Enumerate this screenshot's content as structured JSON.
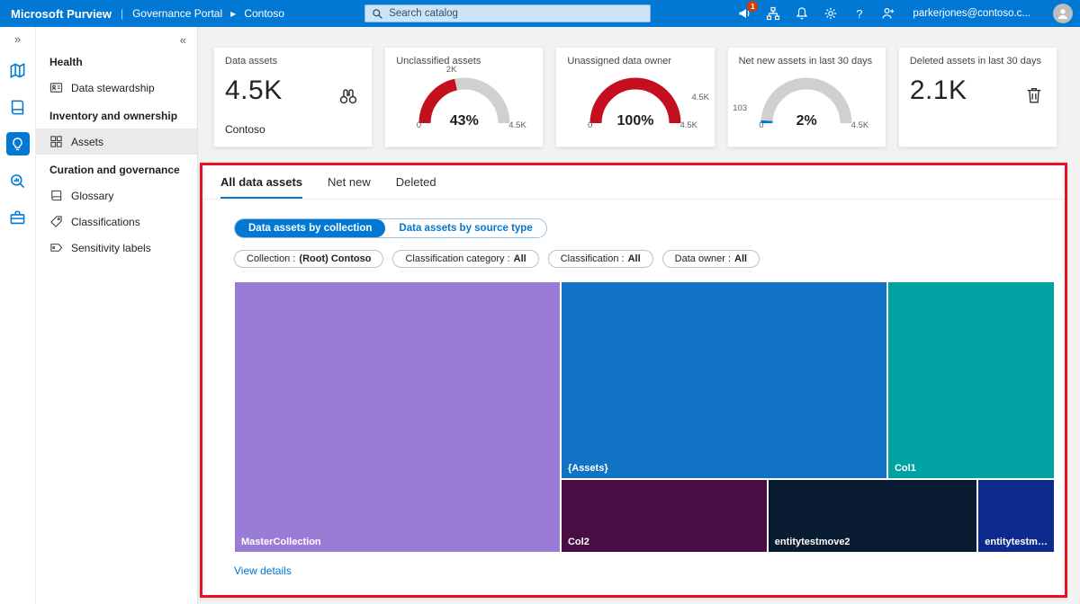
{
  "topbar": {
    "brand": "Microsoft Purview",
    "portal": "Governance Portal",
    "tenant": "Contoso",
    "search_placeholder": "Search catalog",
    "alert_badge": "1",
    "help_label": "?",
    "user_email": "parkerjones@contoso.c..."
  },
  "rail": {
    "expand_glyph": "»"
  },
  "sidebar": {
    "collapse_glyph": "«",
    "sections": [
      {
        "header": "Health",
        "items": [
          {
            "label": "Data stewardship"
          }
        ]
      },
      {
        "header": "Inventory and ownership",
        "items": [
          {
            "label": "Assets"
          }
        ]
      },
      {
        "header": "Curation and governance",
        "items": [
          {
            "label": "Glossary"
          },
          {
            "label": "Classifications"
          },
          {
            "label": "Sensitivity labels"
          }
        ]
      }
    ]
  },
  "kpi": {
    "data_assets": {
      "title": "Data assets",
      "value": "4.5K",
      "subtitle": "Contoso"
    },
    "unclassified": {
      "title": "Unclassified assets",
      "percent": 43,
      "percent_label": "43%",
      "marker": "2K",
      "min": "0",
      "max": "4.5K",
      "color": "#c50f1f"
    },
    "unassigned": {
      "title": "Unassigned data owner",
      "percent": 100,
      "percent_label": "100%",
      "marker": "4.5K",
      "min": "0",
      "max": "4.5K",
      "color": "#c50f1f"
    },
    "net_new": {
      "title": "Net new assets in last 30 days",
      "percent": 2,
      "percent_label": "2%",
      "marker": "103",
      "min": "0",
      "max": "4.5K",
      "color": "#0078d4"
    },
    "deleted": {
      "title": "Deleted assets in last 30 days",
      "value": "2.1K"
    },
    "track_color": "#d2d0ce"
  },
  "panel": {
    "tabs": [
      {
        "label": "All data assets"
      },
      {
        "label": "Net new"
      },
      {
        "label": "Deleted"
      }
    ],
    "toggle": [
      {
        "label": "Data assets by collection"
      },
      {
        "label": "Data assets by source type"
      }
    ],
    "filters": [
      {
        "label": "Collection :",
        "value": "(Root) Contoso"
      },
      {
        "label": "Classification category :",
        "value": "All"
      },
      {
        "label": "Classification :",
        "value": "All"
      },
      {
        "label": "Data owner :",
        "value": "All"
      }
    ],
    "view_details": "View details"
  },
  "chart_data": {
    "type": "treemap",
    "title": "Data assets by collection",
    "tiles": [
      {
        "label": "MasterCollection",
        "color": "#9a7cd6",
        "x": 0,
        "y": 0,
        "w": 39.8,
        "h": 100
      },
      {
        "label": "{Assets}",
        "color": "#1273c4",
        "x": 39.8,
        "y": 0,
        "w": 39.8,
        "h": 72.8
      },
      {
        "label": "Col1",
        "color": "#00a3a1",
        "x": 79.6,
        "y": 0,
        "w": 20.4,
        "h": 72.8
      },
      {
        "label": "Col2",
        "color": "#4a0d43",
        "x": 39.8,
        "y": 72.8,
        "w": 25.2,
        "h": 27.2
      },
      {
        "label": "entitytestmove2",
        "color": "#081b30",
        "x": 65.0,
        "y": 72.8,
        "w": 25.6,
        "h": 27.2
      },
      {
        "label": "entitytestmov...",
        "color": "#0e2a8f",
        "x": 90.6,
        "y": 72.8,
        "w": 9.4,
        "h": 27.2
      }
    ]
  }
}
